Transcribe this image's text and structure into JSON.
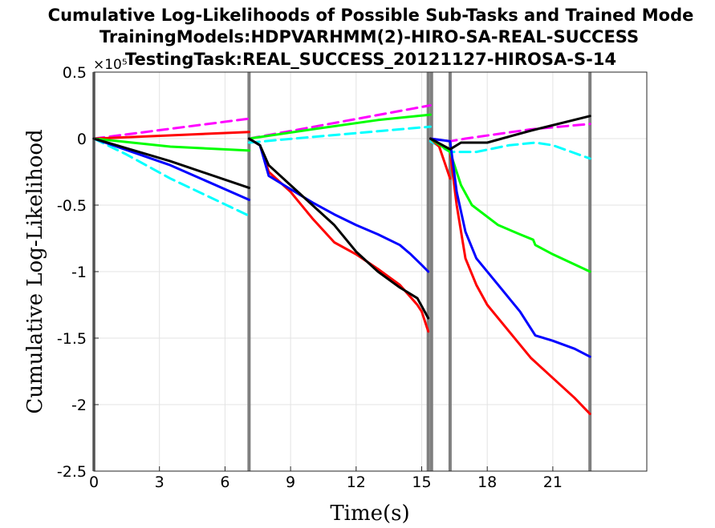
{
  "chart_data": {
    "type": "line",
    "title": [
      "Cumulative Log-Likelihoods of Possible Sub-Tasks and Trained Mode",
      "TrainingModels:HDPVARHMM(2)-HIRO-SA-REAL-SUCCESS",
      "TestingTask:REAL_SUCCESS_20121127-HIROSA-S-14"
    ],
    "xlabel": "Time(s)",
    "ylabel": "Cumulative Log-Likelihood",
    "y_exponent_label": "×10⁵",
    "xlim": [
      0,
      25.3
    ],
    "ylim": [
      -2.5,
      0.5
    ],
    "x_ticks": [
      0,
      3,
      6,
      9,
      12,
      15,
      18,
      21
    ],
    "x_tick_labels": [
      "0",
      "3",
      "6",
      "9",
      "12",
      "15",
      "18",
      "21"
    ],
    "y_ticks": [
      -2.5,
      -2,
      -1.5,
      -1,
      -0.5,
      0,
      0.5
    ],
    "y_tick_labels": [
      "-2.5",
      "-2",
      "-1.5",
      "-1",
      "-0.5",
      "0",
      "0.5"
    ],
    "grid": true,
    "legend": "none",
    "vertical_lines": {
      "color": "#7f7f7f",
      "x": [
        0,
        7.1,
        15.3,
        15.45,
        16.3,
        22.7
      ]
    },
    "series": [
      {
        "color": "#ff00ff",
        "dash": true,
        "segments": [
          [
            [
              0,
              0
            ],
            [
              7.1,
              0.15
            ]
          ],
          [
            [
              7.1,
              0
            ],
            [
              15.4,
              0.25
            ]
          ],
          [
            [
              15.4,
              0
            ],
            [
              16.3,
              -0.02
            ],
            [
              17.0,
              0.0
            ],
            [
              20.0,
              0.07
            ],
            [
              22.7,
              0.11
            ]
          ]
        ]
      },
      {
        "color": "#00ffff",
        "dash": true,
        "segments": [
          [
            [
              0,
              0
            ],
            [
              1.5,
              -0.12
            ],
            [
              3.5,
              -0.3
            ],
            [
              7.1,
              -0.58
            ]
          ],
          [
            [
              7.1,
              -0.03
            ],
            [
              10.5,
              0.02
            ],
            [
              15.4,
              0.09
            ]
          ],
          [
            [
              15.4,
              -0.02
            ],
            [
              16.3,
              -0.1
            ],
            [
              17.5,
              -0.1
            ],
            [
              19.0,
              -0.05
            ],
            [
              20.2,
              -0.03
            ],
            [
              21.0,
              -0.05
            ],
            [
              22.7,
              -0.15
            ]
          ]
        ]
      },
      {
        "color": "#ff0000",
        "dash": false,
        "segments": [
          [
            [
              0,
              0
            ],
            [
              7.1,
              0.05
            ]
          ],
          [
            [
              7.1,
              0
            ],
            [
              7.6,
              -0.05
            ],
            [
              8.0,
              -0.25
            ],
            [
              9.0,
              -0.4
            ],
            [
              10.0,
              -0.6
            ],
            [
              11.0,
              -0.78
            ],
            [
              12.0,
              -0.87
            ],
            [
              13.0,
              -0.98
            ],
            [
              14.0,
              -1.1
            ],
            [
              14.8,
              -1.25
            ],
            [
              15.0,
              -1.3
            ],
            [
              15.3,
              -1.45
            ]
          ],
          [
            [
              15.4,
              0
            ],
            [
              15.8,
              -0.06
            ],
            [
              16.3,
              -0.3
            ]
          ],
          [
            [
              16.3,
              -0.1
            ],
            [
              16.6,
              -0.5
            ],
            [
              17.0,
              -0.9
            ],
            [
              17.5,
              -1.1
            ],
            [
              18.0,
              -1.25
            ],
            [
              19.0,
              -1.45
            ],
            [
              20.0,
              -1.65
            ],
            [
              21.0,
              -1.8
            ],
            [
              22.0,
              -1.95
            ],
            [
              22.7,
              -2.07
            ]
          ]
        ]
      },
      {
        "color": "#00ff00",
        "dash": false,
        "segments": [
          [
            [
              0,
              0
            ],
            [
              3.5,
              -0.06
            ],
            [
              7.1,
              -0.09
            ]
          ],
          [
            [
              7.1,
              0
            ],
            [
              10.0,
              0.07
            ],
            [
              13.0,
              0.14
            ],
            [
              15.4,
              0.18
            ]
          ],
          [
            [
              15.4,
              0
            ],
            [
              16.3,
              -0.1
            ],
            [
              16.8,
              -0.35
            ],
            [
              17.3,
              -0.5
            ],
            [
              18.5,
              -0.65
            ],
            [
              19.5,
              -0.72
            ],
            [
              20.1,
              -0.76
            ],
            [
              20.2,
              -0.8
            ],
            [
              21.0,
              -0.87
            ],
            [
              22.7,
              -1.0
            ]
          ]
        ]
      },
      {
        "color": "#0000ff",
        "dash": false,
        "segments": [
          [
            [
              0,
              0
            ],
            [
              3.5,
              -0.2
            ],
            [
              7.1,
              -0.46
            ]
          ],
          [
            [
              7.1,
              0
            ],
            [
              7.6,
              -0.05
            ],
            [
              8.0,
              -0.28
            ],
            [
              9.0,
              -0.38
            ],
            [
              10.0,
              -0.48
            ],
            [
              11.0,
              -0.57
            ],
            [
              12.0,
              -0.65
            ],
            [
              13.0,
              -0.72
            ],
            [
              14.0,
              -0.8
            ],
            [
              14.5,
              -0.87
            ],
            [
              15.0,
              -0.95
            ],
            [
              15.3,
              -1.0
            ]
          ],
          [
            [
              15.4,
              0
            ],
            [
              16.3,
              -0.02
            ],
            [
              16.6,
              -0.4
            ],
            [
              17.0,
              -0.7
            ],
            [
              17.5,
              -0.9
            ],
            [
              18.5,
              -1.1
            ],
            [
              19.5,
              -1.3
            ],
            [
              20.2,
              -1.48
            ],
            [
              21.0,
              -1.52
            ],
            [
              22.0,
              -1.58
            ],
            [
              22.7,
              -1.64
            ]
          ]
        ]
      },
      {
        "color": "#000000",
        "dash": false,
        "segments": [
          [
            [
              0,
              0
            ],
            [
              3.5,
              -0.17
            ],
            [
              7.1,
              -0.37
            ]
          ],
          [
            [
              7.1,
              0
            ],
            [
              7.6,
              -0.05
            ],
            [
              8.0,
              -0.2
            ],
            [
              9.0,
              -0.35
            ],
            [
              10.0,
              -0.5
            ],
            [
              11.0,
              -0.65
            ],
            [
              12.0,
              -0.85
            ],
            [
              13.0,
              -1.0
            ],
            [
              14.0,
              -1.12
            ],
            [
              14.8,
              -1.2
            ],
            [
              15.3,
              -1.35
            ]
          ],
          [
            [
              15.4,
              0
            ],
            [
              16.3,
              -0.08
            ],
            [
              16.8,
              -0.03
            ],
            [
              18.0,
              -0.03
            ],
            [
              20.0,
              0.06
            ],
            [
              22.7,
              0.17
            ]
          ]
        ]
      }
    ]
  }
}
